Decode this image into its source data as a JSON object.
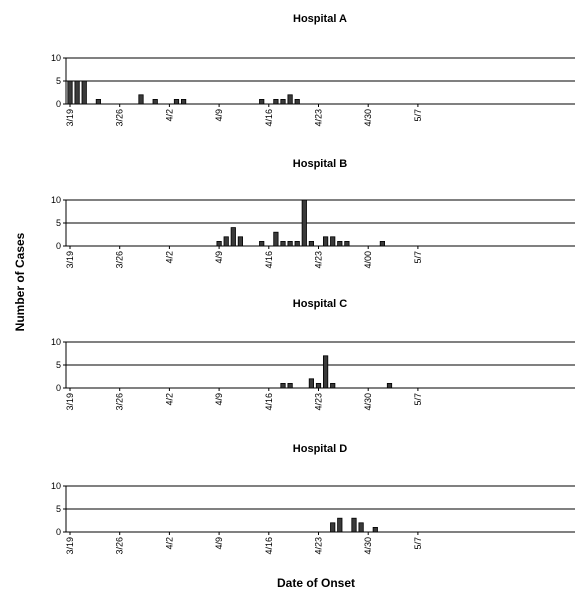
{
  "figure": {
    "xlabel": "Date of Onset",
    "ylabel": "Number of Cases"
  },
  "chart_data": [
    {
      "type": "bar",
      "title": "Hospital A",
      "ylim": [
        0,
        10
      ],
      "yticks": [
        0,
        5,
        10
      ],
      "xticks": [
        "3/19",
        "3/26",
        "4/2",
        "4/9",
        "4/16",
        "4/23",
        "4/30",
        "5/7"
      ],
      "x": [
        "3/19",
        "3/20",
        "3/21",
        "3/23",
        "3/29",
        "3/31",
        "4/2",
        "4/3",
        "4/14",
        "4/16",
        "4/17",
        "4/18",
        "4/19"
      ],
      "values": [
        5,
        5,
        5,
        1,
        2,
        1,
        1,
        1,
        1,
        1,
        1,
        2,
        1
      ],
      "grid": true
    },
    {
      "type": "bar",
      "title": "Hospital B",
      "ylim": [
        0,
        10
      ],
      "yticks": [
        0,
        5,
        10
      ],
      "xticks": [
        "3/19",
        "3/26",
        "4/2",
        "4/9",
        "4/16",
        "4/23",
        "4/00",
        "5/7"
      ],
      "x": [
        "4/8",
        "4/9",
        "4/10",
        "4/11",
        "4/14",
        "4/16",
        "4/17",
        "4/18",
        "4/19",
        "4/20",
        "4/21",
        "4/23",
        "4/24",
        "4/25",
        "4/26",
        "5/1"
      ],
      "values": [
        1,
        2,
        4,
        2,
        1,
        3,
        1,
        1,
        1,
        10,
        1,
        2,
        2,
        1,
        1,
        1
      ],
      "grid": true
    },
    {
      "type": "bar",
      "title": "Hospital C",
      "ylim": [
        0,
        10
      ],
      "yticks": [
        0,
        5,
        10
      ],
      "xticks": [
        "3/19",
        "3/26",
        "4/2",
        "4/9",
        "4/16",
        "4/23",
        "4/30",
        "5/7"
      ],
      "x": [
        "4/17",
        "4/18",
        "4/21",
        "4/22",
        "4/23",
        "4/24",
        "5/2"
      ],
      "values": [
        1,
        1,
        2,
        1,
        7,
        1,
        1
      ],
      "grid": true
    },
    {
      "type": "bar",
      "title": "Hospital D",
      "ylim": [
        0,
        10
      ],
      "yticks": [
        0,
        5,
        10
      ],
      "xticks": [
        "3/19",
        "3/26",
        "4/2",
        "4/9",
        "4/16",
        "4/23",
        "4/30",
        "5/7"
      ],
      "x": [
        "4/24",
        "4/25",
        "4/27",
        "4/28",
        "4/30"
      ],
      "values": [
        2,
        3,
        3,
        2,
        1
      ],
      "grid": true
    }
  ]
}
